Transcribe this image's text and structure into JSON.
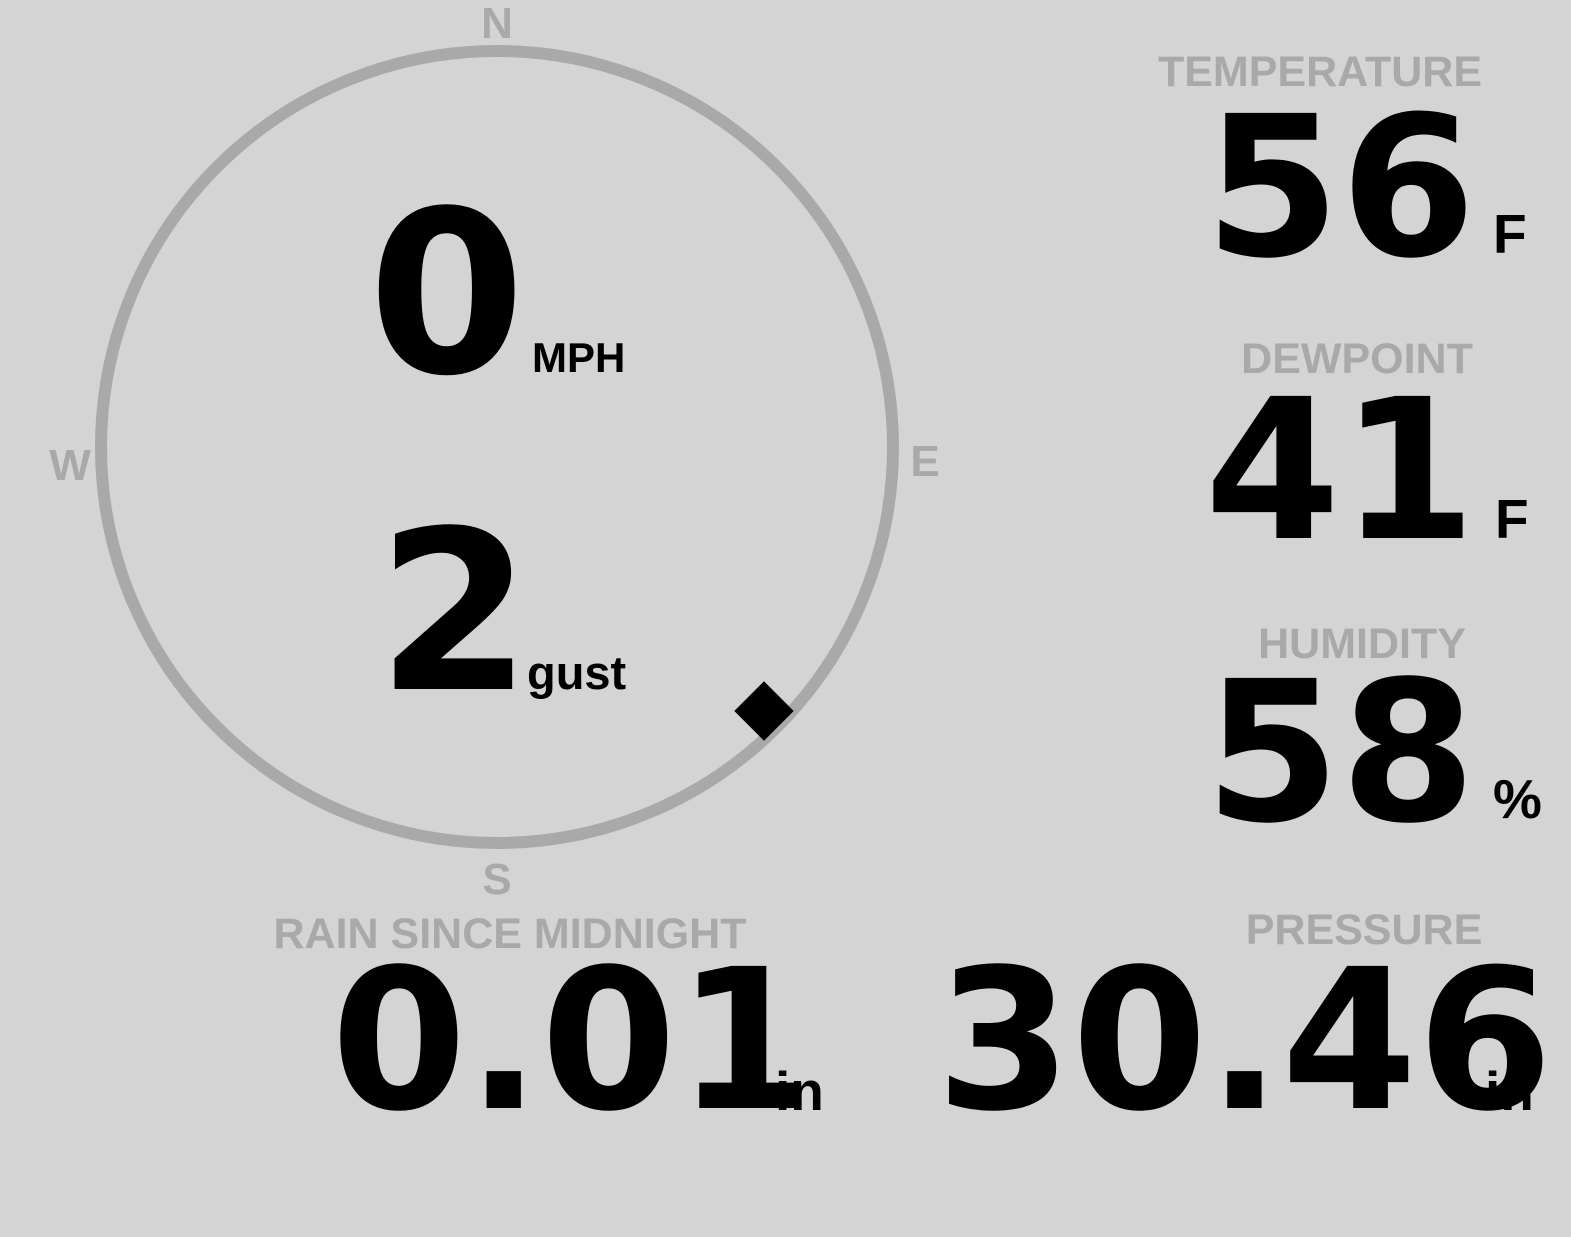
{
  "colors": {
    "background": "#d4d4d4",
    "muted_gray": "#a9a9a9",
    "primary_text": "#000000"
  },
  "wind": {
    "compass_labels": {
      "north": "N",
      "east": "E",
      "south": "S",
      "west": "W"
    },
    "speed_value": "0",
    "speed_unit": "MPH",
    "gust_value": "2",
    "gust_unit": "gust",
    "direction_marker": "diamond-southeast"
  },
  "metrics": {
    "temperature": {
      "label": "TEMPERATURE",
      "value": "56",
      "unit": "F"
    },
    "dewpoint": {
      "label": "DEWPOINT",
      "value": "41",
      "unit": "F"
    },
    "humidity": {
      "label": "HUMIDITY",
      "value": "58",
      "unit": "%"
    },
    "rain": {
      "label": "RAIN SINCE MIDNIGHT",
      "value": "0.01",
      "unit": "in"
    },
    "pressure": {
      "label": "PRESSURE",
      "value": "30.46",
      "unit": "in"
    }
  }
}
